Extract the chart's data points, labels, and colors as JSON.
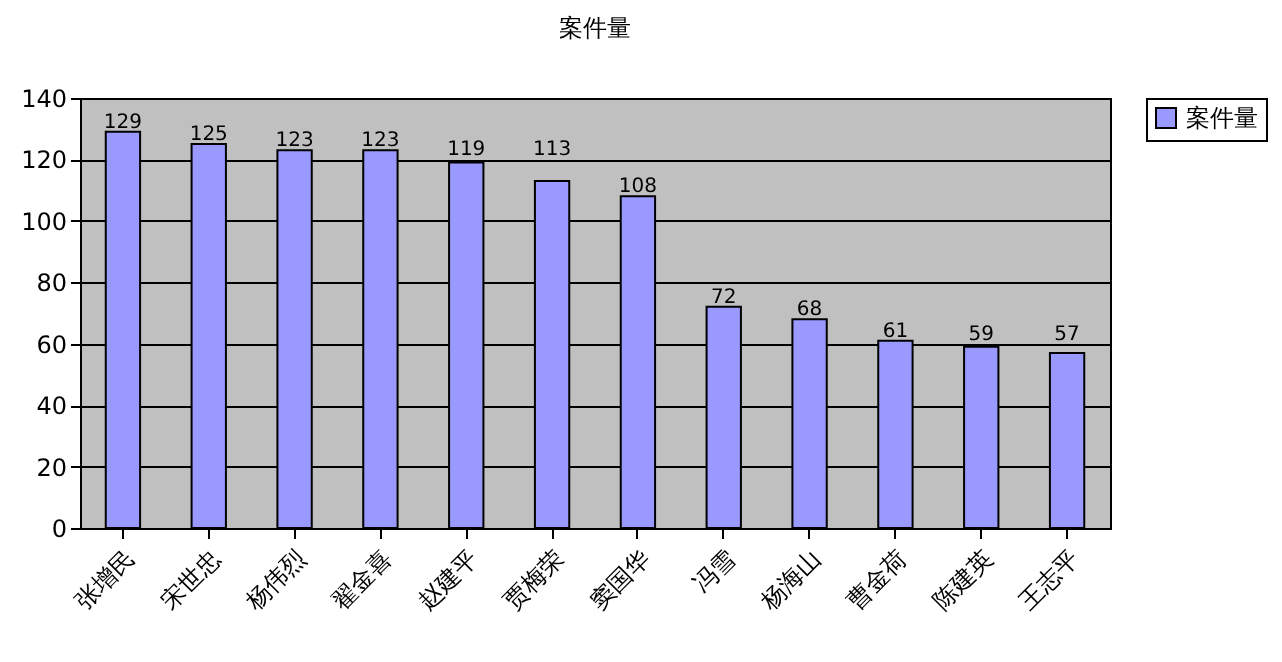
{
  "chart_data": {
    "type": "bar",
    "title": "案件量",
    "categories": [
      "张增民",
      "宋世忠",
      "杨伟烈",
      "翟金喜",
      "赵建平",
      "贾梅荣",
      "窦国华",
      "冯雪",
      "杨海山",
      "曹金荷",
      "陈建英",
      "王志平"
    ],
    "series": [
      {
        "name": "案件量",
        "color": "#9999ff",
        "values": [
          129,
          125,
          123,
          123,
          119,
          113,
          108,
          72,
          68,
          61,
          59,
          57
        ]
      }
    ],
    "ylim": [
      0,
      140
    ],
    "yticks": [
      0,
      20,
      40,
      60,
      80,
      100,
      120,
      140
    ],
    "grid": "y",
    "legend": "right",
    "data_labels": true
  }
}
